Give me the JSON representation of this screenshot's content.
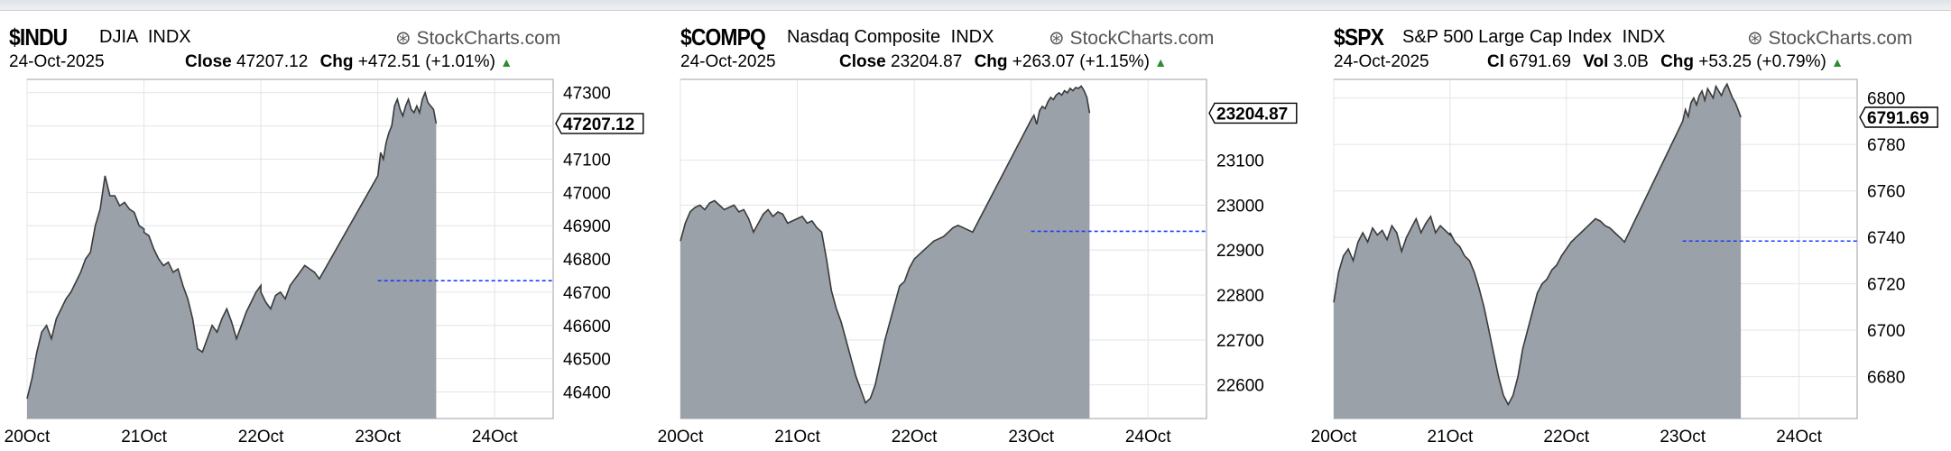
{
  "chart_data": [
    {
      "type": "area",
      "symbol": "$INDU",
      "name": "DJIA",
      "exchange": "INDX",
      "watermark": "StockCharts.com",
      "date": "24-Oct-2025",
      "close_label": "Close",
      "close": "47207.12",
      "chg_label": "Chg",
      "chg": "+472.51 (+1.01%)",
      "last_value_label": "47207.12",
      "x_ticks": [
        "20Oct",
        "21Oct",
        "22Oct",
        "23Oct",
        "24Oct"
      ],
      "y_ticks": [
        "46400",
        "46500",
        "46600",
        "46700",
        "46800",
        "46900",
        "47000",
        "47100",
        "47200",
        "47300"
      ],
      "ylim": [
        46320,
        47340
      ],
      "prev_close": 46734.6,
      "grid": true,
      "series": [
        {
          "day": 0,
          "values": [
            46380,
            46440,
            46520,
            46580,
            46600,
            46560,
            46620,
            46650,
            46680,
            46700,
            46730,
            46760,
            46800,
            46820,
            46900,
            46950,
            47050,
            46990,
            46990,
            46960,
            46970,
            46950,
            46940,
            46900,
            46890
          ]
        },
        {
          "day": 1,
          "values": [
            46880,
            46870,
            46830,
            46800,
            46780,
            46790,
            46760,
            46770,
            46720,
            46680,
            46620,
            46530,
            46520,
            46560,
            46600,
            46580,
            46620,
            46650,
            46610,
            46560,
            46600,
            46640,
            46670,
            46700,
            46720
          ]
        },
        {
          "day": 2,
          "values": [
            46700,
            46670,
            46650,
            46690,
            46700,
            46680,
            46720,
            46740,
            46760,
            46780,
            46770,
            46760,
            46740
          ]
        },
        {
          "day": 3,
          "values": [
            47050,
            47120,
            47100,
            47150,
            47180,
            47200,
            47260,
            47280,
            47250,
            47230,
            47260,
            47280,
            47250,
            47240,
            47260,
            47240,
            47280,
            47300,
            47270,
            47260,
            47250,
            47207.12
          ]
        }
      ]
    },
    {
      "type": "area",
      "symbol": "$COMPQ",
      "name": "Nasdaq Composite",
      "exchange": "INDX",
      "watermark": "StockCharts.com",
      "date": "24-Oct-2025",
      "close_label": "Close",
      "close": "23204.87",
      "chg_label": "Chg",
      "chg": "+263.07 (+1.15%)",
      "last_value_label": "23204.87",
      "x_ticks": [
        "20Oct",
        "21Oct",
        "22Oct",
        "23Oct",
        "24Oct"
      ],
      "y_ticks": [
        "22600",
        "22700",
        "22800",
        "22900",
        "23000",
        "23100"
      ],
      "ylim": [
        22525,
        23280
      ],
      "prev_close": 22941.8,
      "grid": true,
      "series": [
        {
          "day": 0,
          "values": [
            22920,
            22960,
            22985,
            22995,
            23000,
            22990,
            23005,
            23010,
            23000,
            22990,
            22995,
            23000,
            22985,
            22990,
            22970,
            22940,
            22960,
            22980,
            22990,
            22975,
            22985,
            22980,
            22960,
            22965,
            22970
          ]
        },
        {
          "day": 1,
          "values": [
            22970,
            22975,
            22960,
            22965,
            22950,
            22940,
            22880,
            22810,
            22770,
            22740,
            22700,
            22660,
            22620,
            22590,
            22560,
            22570,
            22600,
            22650,
            22700,
            22740,
            22780,
            22820,
            22830,
            22860,
            22880
          ]
        },
        {
          "day": 2,
          "values": [
            22880,
            22890,
            22900,
            22910,
            22920,
            22925,
            22930,
            22940,
            22950,
            22955,
            22950,
            22945,
            22940
          ]
        },
        {
          "day": 3,
          "values": [
            23190,
            23200,
            23180,
            23210,
            23220,
            23215,
            23230,
            23240,
            23235,
            23245,
            23250,
            23245,
            23255,
            23250,
            23260,
            23255,
            23262,
            23260,
            23265,
            23255,
            23240,
            23204.87
          ]
        }
      ]
    },
    {
      "type": "area",
      "symbol": "$SPX",
      "name": "S&P 500 Large Cap Index",
      "exchange": "INDX",
      "watermark": "StockCharts.com",
      "date": "24-Oct-2025",
      "close_label": "Cl",
      "close": "6791.69",
      "vol_label": "Vol",
      "vol": "3.0B",
      "chg_label": "Chg",
      "chg": "+53.25 (+0.79%)",
      "last_value_label": "6791.69",
      "x_ticks": [
        "20Oct",
        "21Oct",
        "22Oct",
        "23Oct",
        "24Oct"
      ],
      "y_ticks": [
        "6680",
        "6700",
        "6720",
        "6740",
        "6760",
        "6780",
        "6800"
      ],
      "ylim": [
        6662,
        6808
      ],
      "prev_close": 6738.4,
      "grid": true,
      "series": [
        {
          "day": 0,
          "values": [
            6712,
            6725,
            6732,
            6735,
            6730,
            6738,
            6742,
            6738,
            6744,
            6741,
            6743,
            6739,
            6745,
            6742,
            6734,
            6740,
            6744,
            6748,
            6742,
            6746,
            6749,
            6742,
            6745,
            6743,
            6741
          ]
        },
        {
          "day": 1,
          "values": [
            6742,
            6738,
            6736,
            6732,
            6730,
            6725,
            6718,
            6710,
            6700,
            6690,
            6680,
            6672,
            6668,
            6672,
            6680,
            6692,
            6700,
            6708,
            6716,
            6720,
            6722,
            6726,
            6728,
            6732,
            6735
          ]
        },
        {
          "day": 2,
          "values": [
            6735,
            6738,
            6740,
            6742,
            6744,
            6746,
            6748,
            6747,
            6745,
            6744,
            6742,
            6740,
            6738
          ]
        },
        {
          "day": 3,
          "values": [
            6790,
            6795,
            6792,
            6798,
            6800,
            6797,
            6801,
            6803,
            6799,
            6804,
            6802,
            6800,
            6805,
            6803,
            6801,
            6804,
            6806,
            6803,
            6800,
            6798,
            6795,
            6791.69
          ]
        }
      ]
    }
  ]
}
